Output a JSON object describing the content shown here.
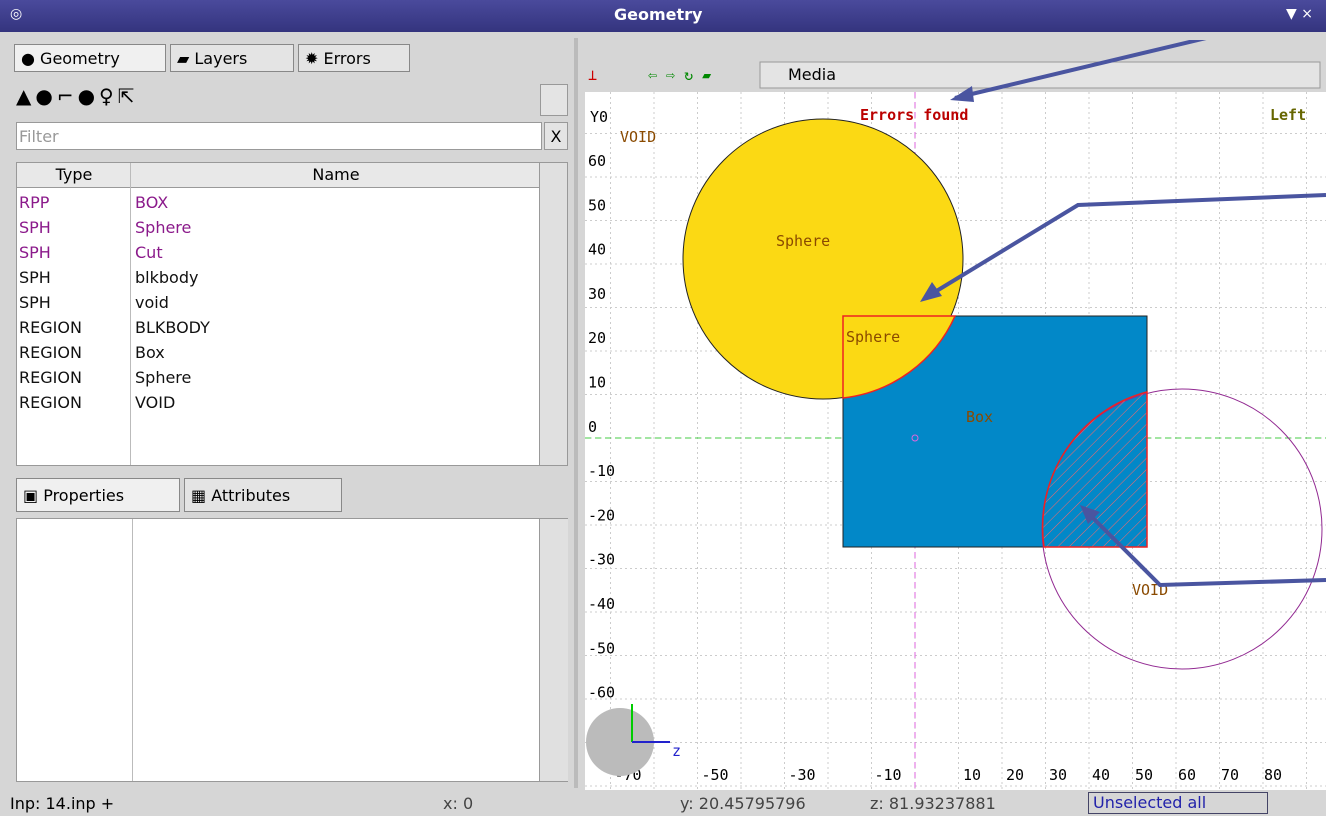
{
  "window": {
    "title": "Geometry"
  },
  "left": {
    "tabs": [
      "Geometry",
      "Layers",
      "Errors"
    ],
    "filter": "Filter",
    "filter_clear": "X",
    "table": {
      "headers": [
        "Type",
        "Name"
      ],
      "rows": [
        [
          "RPP",
          "BOX"
        ],
        [
          "SPH",
          "Sphere"
        ],
        [
          "SPH",
          "Cut"
        ],
        [
          "SPH",
          "blkbody"
        ],
        [
          "SPH",
          "void"
        ],
        [
          "REGION",
          "BLKBODY"
        ],
        [
          "REGION",
          "Box"
        ],
        [
          "REGION",
          "Sphere"
        ],
        [
          "REGION",
          "VOID"
        ]
      ]
    },
    "bottom_tabs": [
      "Properties",
      "Attributes"
    ]
  },
  "viewport": {
    "layer": "Media",
    "status_text": "Errors found",
    "view": "Left",
    "y_top": "Y0",
    "y_ticks": [
      "60",
      "50",
      "40",
      "30",
      "20",
      "10",
      "0",
      "-10",
      "-20",
      "-30",
      "-40",
      "-50",
      "-60",
      "-70"
    ],
    "x_ticks": [
      "-70",
      "-50",
      "-30",
      "-10",
      "10",
      "20",
      "30",
      "40",
      "50",
      "60",
      "70",
      "80"
    ],
    "x_axis": "z",
    "regions": [
      "VOID",
      "Sphere",
      "Sphere",
      "Box",
      "VOID"
    ]
  },
  "status": {
    "input": "Inp: 14.inp +",
    "x": "x: 0",
    "y": "y: 20.45795796",
    "z": "z: 81.93237881",
    "selection": "Unselected all"
  }
}
